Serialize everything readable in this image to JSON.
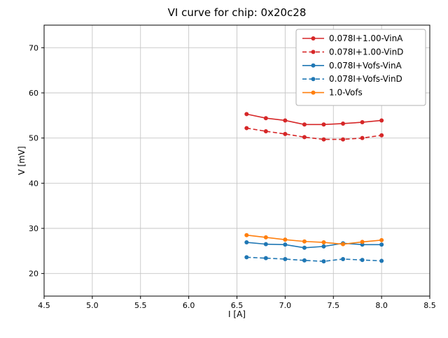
{
  "chart_data": {
    "type": "line",
    "title": "VI curve for chip: 0x20c28",
    "xlabel": "I [A]",
    "ylabel": "V [mV]",
    "xlim": [
      4.5,
      8.5
    ],
    "ylim": [
      15,
      75
    ],
    "xticks": [
      4.5,
      5.0,
      5.5,
      6.0,
      6.5,
      7.0,
      7.5,
      8.0,
      8.5
    ],
    "yticks": [
      20,
      30,
      40,
      50,
      60,
      70
    ],
    "grid": true,
    "legend_position": "upper right",
    "x": [
      6.6,
      6.8,
      7.0,
      7.2,
      7.4,
      7.6,
      7.8,
      8.0
    ],
    "series": [
      {
        "name": "0.078I+1.00-VinA",
        "color": "#d62728",
        "dash": "solid",
        "values": [
          55.3,
          54.4,
          53.9,
          53.0,
          53.0,
          53.2,
          53.5,
          53.9
        ]
      },
      {
        "name": "0.078I+1.00-VinD",
        "color": "#d62728",
        "dash": "dashed",
        "values": [
          52.2,
          51.5,
          50.9,
          50.2,
          49.7,
          49.7,
          50.0,
          50.6
        ]
      },
      {
        "name": "0.078I+Vofs-VinA",
        "color": "#1f77b4",
        "dash": "solid",
        "values": [
          26.9,
          26.5,
          26.4,
          25.7,
          26.0,
          26.7,
          26.4,
          26.4
        ]
      },
      {
        "name": "0.078I+Vofs-VinD",
        "color": "#1f77b4",
        "dash": "dashed",
        "values": [
          23.6,
          23.4,
          23.2,
          22.9,
          22.7,
          23.2,
          23.0,
          22.8
        ]
      },
      {
        "name": "1.0-Vofs",
        "color": "#ff7f0e",
        "dash": "solid",
        "values": [
          28.5,
          28.0,
          27.5,
          27.1,
          26.9,
          26.5,
          27.0,
          27.4
        ]
      }
    ],
    "style": {
      "grid_color": "#c6c6c6",
      "spine_color": "#000000",
      "legend_border": "#b0b0b0",
      "legend_bg": "#ffffff"
    }
  }
}
